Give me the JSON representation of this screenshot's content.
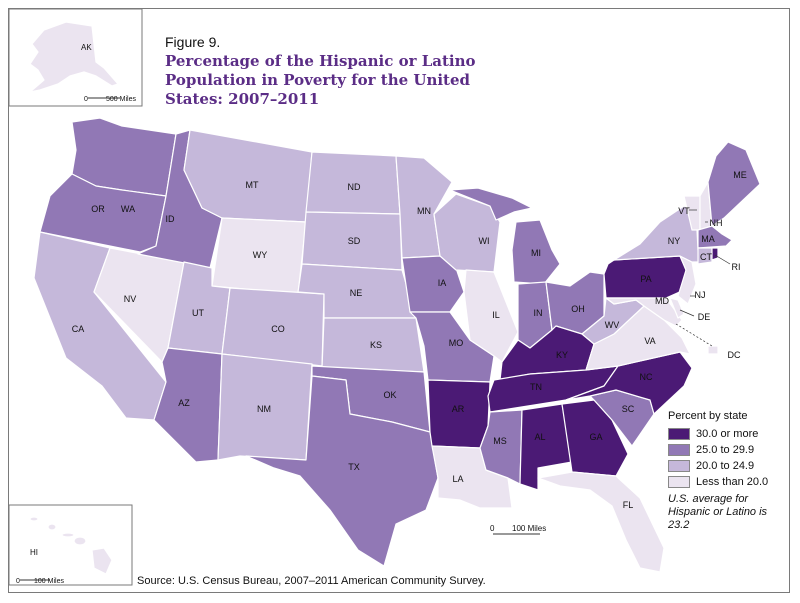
{
  "figure": {
    "number_label": "Figure 9.",
    "title": "Percentage of the Hispanic or Latino Population in Poverty for the United States: 2007–2011"
  },
  "legend": {
    "title": "Percent by state",
    "classes": [
      {
        "label": "30.0 or more",
        "color": "#4b1a75"
      },
      {
        "label": "25.0 to 29.9",
        "color": "#9178b5"
      },
      {
        "label": "20.0 to 24.9",
        "color": "#c5b8da"
      },
      {
        "label": "Less than 20.0",
        "color": "#ebe4f0"
      }
    ]
  },
  "note": "U.S. average for Hispanic or Latino is 23.2",
  "source": "Source: U.S. Census Bureau, 2007–2011 American Community Survey.",
  "insets": {
    "alaska": {
      "label": "AK",
      "scale_zero": "0",
      "scale_label": "500 Miles"
    },
    "hawaii": {
      "label": "HI",
      "scale_zero": "0",
      "scale_label": "100 Miles"
    }
  },
  "main_scale": {
    "zero": "0",
    "label": "100 Miles"
  },
  "chart_data": {
    "type": "choropleth",
    "title": "Percentage of the Hispanic or Latino Population in Poverty for the United States: 2007–2011",
    "value_label": "Percent by state",
    "class_labels": [
      "Less than 20.0",
      "20.0 to 24.9",
      "25.0 to 29.9",
      "30.0 or more"
    ],
    "states": {
      "WA": 2,
      "OR": 2,
      "CA": 1,
      "NV": 0,
      "ID": 2,
      "MT": 1,
      "WY": 0,
      "UT": 1,
      "AZ": 2,
      "CO": 1,
      "NM": 1,
      "ND": 1,
      "SD": 1,
      "NE": 1,
      "KS": 1,
      "OK": 2,
      "TX": 2,
      "MN": 1,
      "IA": 2,
      "MO": 2,
      "AR": 3,
      "LA": 0,
      "WI": 1,
      "IL": 0,
      "MS": 2,
      "MI": 2,
      "IN": 2,
      "OH": 2,
      "KY": 3,
      "TN": 3,
      "AL": 3,
      "GA": 3,
      "FL": 0,
      "SC": 2,
      "NC": 3,
      "VA": 0,
      "WV": 1,
      "PA": 3,
      "NY": 1,
      "VT": 0,
      "NH": 0,
      "ME": 2,
      "MA": 2,
      "CT": 1,
      "RI": 3,
      "NJ": 0,
      "DE": 0,
      "MD": 0,
      "DC": 0,
      "AK": 0,
      "HI": 0
    }
  }
}
